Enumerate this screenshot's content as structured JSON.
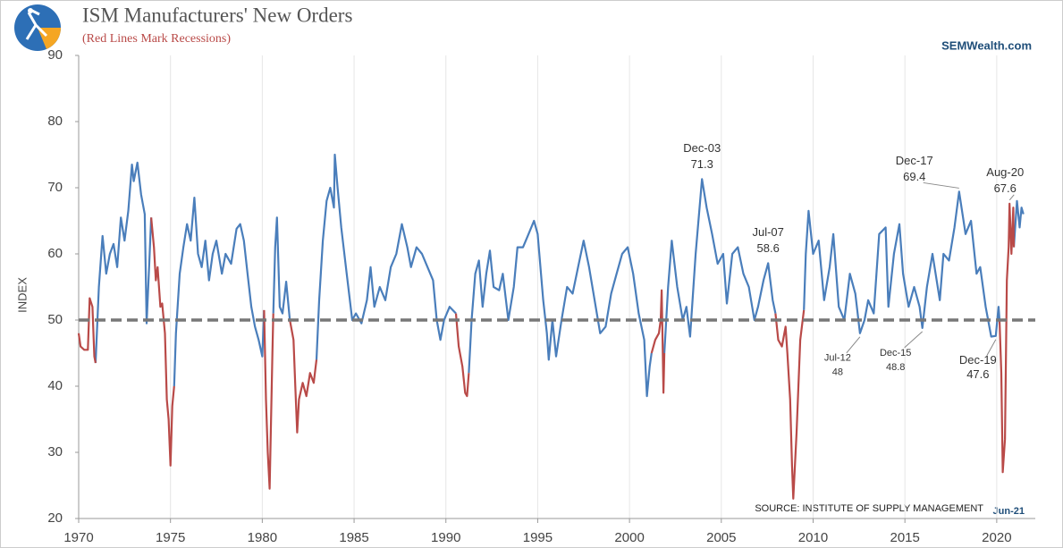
{
  "chart_data": {
    "type": "line",
    "title": "ISM Manufacturers' New Orders",
    "subtitle": "(Red Lines Mark Recessions)",
    "brand": "SEMWealth.com",
    "source": "SOURCE:  INSTITUTE OF SUPPLY MANAGEMENT",
    "date_label": "Jun-21",
    "y_label": "INDEX",
    "xlim": [
      1970,
      2022.1
    ],
    "xticks": [
      1970,
      1975,
      1980,
      1985,
      1990,
      1995,
      2000,
      2005,
      2010,
      2015,
      2020
    ],
    "ylim": [
      20,
      90
    ],
    "yticks": [
      20,
      30,
      40,
      50,
      60,
      70,
      80,
      90
    ],
    "grid": true,
    "reference_line": 50,
    "series": [
      {
        "color": "#4a7ebb",
        "x": [
          1970.92,
          1971.1,
          1971.3,
          1971.5,
          1971.7,
          1971.9,
          1972.1,
          1972.3,
          1972.5,
          1972.7,
          1972.9,
          1973.0,
          1973.2,
          1973.4,
          1973.6,
          1973.7,
          1973.85,
          1973.95,
          null,
          1975.2,
          1975.3,
          1975.5,
          1975.7,
          1975.9,
          1976.1,
          1976.3,
          1976.5,
          1976.7,
          1976.9,
          1977.1,
          1977.3,
          1977.5,
          1977.8,
          1978.0,
          1978.3,
          1978.6,
          1978.8,
          1979.0,
          1979.2,
          1979.4,
          1979.6,
          1979.8,
          1980.0,
          1980.1,
          null,
          1980.6,
          1980.7,
          1980.8,
          1980.95,
          1981.1,
          1981.3,
          1981.5,
          null,
          1982.95,
          1983.1,
          1983.3,
          1983.5,
          1983.7,
          1983.9,
          1983.95,
          1984.1,
          1984.3,
          1984.6,
          1984.9,
          1985.1,
          1985.4,
          1985.7,
          1985.9,
          1986.1,
          1986.4,
          1986.7,
          1987.0,
          1987.3,
          1987.6,
          1987.9,
          1988.1,
          1988.4,
          1988.7,
          1989.0,
          1989.3,
          1989.5,
          1989.7,
          1989.9,
          1990.2,
          1990.55,
          null,
          1991.25,
          1991.4,
          1991.6,
          1991.8,
          1992.0,
          1992.2,
          1992.4,
          1992.6,
          1992.9,
          1993.1,
          1993.4,
          1993.7,
          1993.9,
          1994.2,
          1994.5,
          1994.8,
          1995.0,
          1995.3,
          1995.5,
          1995.6,
          1995.8,
          1996.0,
          1996.3,
          1996.6,
          1996.9,
          1997.2,
          1997.5,
          1997.8,
          1998.1,
          1998.4,
          1998.7,
          1999.0,
          1999.3,
          1999.6,
          1999.9,
          2000.2,
          2000.5,
          2000.8,
          2000.95,
          2001.1,
          2001.2,
          null,
          2001.9,
          2002.1,
          2002.3,
          2002.6,
          2002.9,
          2003.1,
          2003.3,
          2003.6,
          2003.95,
          2004.2,
          2004.5,
          2004.8,
          2005.1,
          2005.3,
          2005.6,
          2005.9,
          2006.2,
          2006.5,
          2006.8,
          2007.0,
          2007.3,
          2007.55,
          2007.8,
          2007.95,
          null,
          2009.5,
          2009.6,
          2009.75,
          2010.0,
          2010.3,
          2010.6,
          2010.9,
          2011.1,
          2011.4,
          2011.7,
          2012.0,
          2012.3,
          2012.55,
          2012.8,
          2013.0,
          2013.3,
          2013.6,
          2013.95,
          2014.1,
          2014.4,
          2014.7,
          2014.9,
          2015.2,
          2015.5,
          2015.8,
          2015.95,
          2016.2,
          2016.5,
          2016.9,
          2017.1,
          2017.4,
          2017.7,
          2017.95,
          2018.3,
          2018.6,
          2018.9,
          2019.1,
          2019.4,
          2019.7,
          2019.95,
          2020.1,
          2020.15,
          null,
          2020.93,
          2021.1,
          2021.25,
          2021.35,
          2021.45
        ],
        "values": [
          43.5,
          55,
          62.7,
          57,
          60,
          61.5,
          58,
          65.5,
          62,
          66.5,
          73.5,
          71,
          73.8,
          69,
          66,
          49.5,
          59,
          65.5,
          null,
          40,
          48,
          57,
          61,
          64.5,
          62,
          68.5,
          60,
          58,
          62,
          56,
          60,
          62,
          57,
          60,
          58.5,
          63.8,
          64.5,
          62,
          57,
          52,
          49,
          47,
          44.5,
          51.5,
          null,
          51,
          61,
          65.5,
          52,
          51,
          55.8,
          50,
          null,
          44,
          53,
          62,
          68,
          70,
          67,
          75,
          70,
          64,
          57,
          50,
          51,
          49.5,
          53,
          58,
          52,
          55,
          53,
          58,
          60,
          64.5,
          61,
          58,
          61,
          60,
          58,
          56,
          50,
          47,
          50,
          52,
          51,
          null,
          42,
          50,
          57,
          59,
          52,
          57,
          60.5,
          55,
          54.5,
          57,
          50,
          55,
          61,
          61,
          63,
          65,
          63,
          53,
          48,
          44,
          50,
          44.5,
          50,
          55,
          54,
          58,
          62,
          58,
          53,
          48,
          49,
          54,
          57,
          60,
          61,
          57,
          51,
          47,
          38.5,
          43,
          45,
          null,
          45,
          55,
          62,
          55,
          50,
          52,
          47.5,
          60,
          71.3,
          67,
          63,
          58.5,
          60,
          52.5,
          60,
          61,
          57,
          55,
          50,
          52,
          56,
          58.6,
          53,
          51,
          null,
          51.5,
          60,
          66.5,
          60,
          62,
          53,
          58,
          63,
          52,
          50,
          57,
          54,
          48,
          50,
          53,
          51,
          63,
          64,
          52,
          60,
          64.5,
          57,
          52,
          55,
          52,
          48.8,
          55,
          60,
          53,
          60,
          59,
          64,
          69.4,
          63,
          65,
          57,
          58,
          52,
          47.5,
          47.6,
          52,
          50,
          null,
          61,
          68,
          64,
          67,
          66
        ]
      },
      {
        "color": "#b94a48",
        "x": [
          1970.0,
          1970.1,
          1970.3,
          1970.5,
          1970.6,
          1970.75,
          1970.85,
          1970.92,
          null,
          1973.95,
          1974.1,
          1974.2,
          1974.3,
          1974.45,
          1974.55,
          1974.7,
          1974.8,
          1974.9,
          1975.0,
          1975.1,
          1975.2,
          null,
          1980.1,
          1980.2,
          1980.3,
          1980.4,
          1980.55,
          1980.6,
          null,
          1981.5,
          1981.7,
          1981.8,
          1981.9,
          1982.0,
          1982.2,
          1982.4,
          1982.6,
          1982.8,
          1982.95,
          null,
          1990.55,
          1990.7,
          1990.9,
          1991.05,
          1991.15,
          1991.25,
          null,
          2001.2,
          2001.4,
          2001.6,
          2001.7,
          2001.75,
          2001.8,
          2001.85,
          2001.9,
          null,
          2007.95,
          2008.1,
          2008.3,
          2008.5,
          2008.6,
          2008.75,
          2008.85,
          2008.92,
          2009.1,
          2009.3,
          2009.5,
          null,
          2020.15,
          2020.25,
          2020.33,
          2020.45,
          2020.55,
          2020.65,
          2020.7,
          2020.8,
          2020.9,
          2020.93
        ],
        "values": [
          48,
          46,
          45.5,
          45.5,
          53.3,
          52,
          44.5,
          43.5,
          null,
          65.5,
          61,
          56,
          58,
          52,
          52.5,
          48,
          38,
          35,
          28,
          37,
          40,
          null,
          51.5,
          38,
          30,
          24.5,
          45,
          51,
          null,
          50,
          47,
          40,
          33,
          38,
          40.5,
          38.5,
          42,
          40.5,
          44,
          null,
          51,
          46,
          43,
          39,
          38.5,
          42,
          null,
          45,
          47,
          48,
          50,
          54.5,
          47,
          39,
          45,
          null,
          51,
          47,
          46,
          49,
          45,
          38,
          28,
          23,
          33,
          47,
          51.5,
          null,
          50,
          42,
          27,
          32,
          56,
          61,
          67.6,
          60,
          67,
          61
        ]
      }
    ],
    "annotations": [
      {
        "x": 2003.95,
        "label": "Dec-03",
        "value": 71.3,
        "position": "above"
      },
      {
        "x": 2007.55,
        "label": "Jul-07",
        "value": 58.6,
        "position": "above"
      },
      {
        "x": 2017.95,
        "label": "Dec-17",
        "value": 69.4,
        "position": "above"
      },
      {
        "x": 2020.7,
        "label": "Aug-20",
        "value": 67.6,
        "position": "above"
      },
      {
        "x": 2012.55,
        "label": "Jul-12",
        "value": 48,
        "position": "below"
      },
      {
        "x": 2015.95,
        "label": "Dec-15",
        "value": 48.8,
        "position": "below"
      },
      {
        "x": 2019.95,
        "label": "Dec-19",
        "value": 47.6,
        "position": "below"
      }
    ]
  }
}
